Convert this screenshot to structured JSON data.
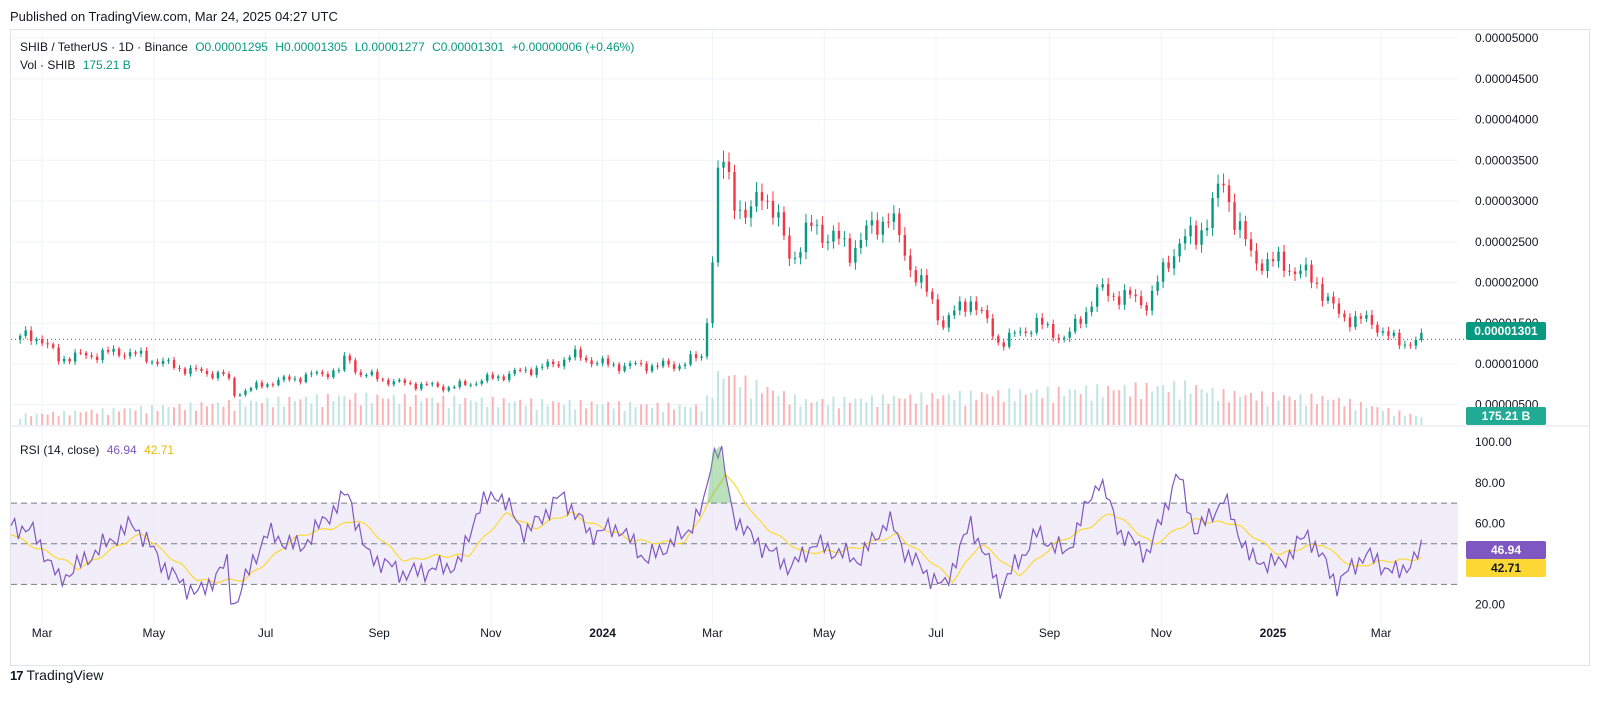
{
  "header": {
    "published": "Published on TradingView.com, Mar 24, 2025 04:27 UTC"
  },
  "legend": {
    "symbol": "SHIB / TetherUS · 1D · Binance",
    "open": "O0.00001295",
    "high": "H0.00001305",
    "low": "L0.00001277",
    "close": "C0.00001301",
    "change": "+0.00000006 (+0.46%)",
    "vol_label": "Vol · SHIB",
    "vol_value": "175.21 B",
    "rsi_label": "RSI (14, close)",
    "rsi_value": "46.94",
    "rsi_ma_value": "42.71"
  },
  "badges": {
    "price": "0.00001301",
    "volume": "175.21 B",
    "rsi": "46.94",
    "rsi_ma": "42.71"
  },
  "footer": {
    "brand": "TradingView",
    "logo_mark": "17"
  },
  "colors": {
    "up": "#089981",
    "down": "#f23645",
    "rsi": "#7e57c2",
    "rsi_ma": "#fdd835",
    "band": "#ede7f6"
  },
  "chart_data": [
    {
      "type": "candlestick",
      "title": "SHIB / TetherUS · 1D · Binance",
      "y_ticks": [
        "0.00005000",
        "0.00004500",
        "0.00004000",
        "0.00003500",
        "0.00003000",
        "0.00002500",
        "0.00002000",
        "0.00001500",
        "0.00001000",
        "0.00000500"
      ],
      "ylim": [
        2.5e-06,
        5.1e-05
      ],
      "x_ticks": [
        {
          "label": "Mar",
          "date": "2023-03-01"
        },
        {
          "label": "May",
          "date": "2023-05-01"
        },
        {
          "label": "Jul",
          "date": "2023-07-01"
        },
        {
          "label": "Sep",
          "date": "2023-09-01"
        },
        {
          "label": "Nov",
          "date": "2023-11-01"
        },
        {
          "label": "2024",
          "date": "2024-01-01"
        },
        {
          "label": "Mar",
          "date": "2024-03-01"
        },
        {
          "label": "May",
          "date": "2024-05-01"
        },
        {
          "label": "Jul",
          "date": "2024-07-01"
        },
        {
          "label": "Sep",
          "date": "2024-09-01"
        },
        {
          "label": "Nov",
          "date": "2024-11-01"
        },
        {
          "label": "2025",
          "date": "2025-01-01"
        },
        {
          "label": "Mar",
          "date": "2025-03-01"
        }
      ],
      "x_range": [
        "2023-02-12",
        "2025-04-12"
      ],
      "close_path": [
        {
          "date": "2023-02-12",
          "close": 1.3e-05
        },
        {
          "date": "2023-02-25",
          "close": 1.36e-05
        },
        {
          "date": "2023-03-10",
          "close": 1.07e-05
        },
        {
          "date": "2023-04-15",
          "close": 1.15e-05
        },
        {
          "date": "2023-05-20",
          "close": 9.2e-06
        },
        {
          "date": "2023-06-10",
          "close": 8.6e-06
        },
        {
          "date": "2023-06-13",
          "close": 6.2e-06
        },
        {
          "date": "2023-07-01",
          "close": 7.6e-06
        },
        {
          "date": "2023-08-10",
          "close": 9.2e-06
        },
        {
          "date": "2023-08-15",
          "close": 1.11e-05
        },
        {
          "date": "2023-08-20",
          "close": 8.9e-06
        },
        {
          "date": "2023-09-10",
          "close": 7.7e-06
        },
        {
          "date": "2023-10-10",
          "close": 7.1e-06
        },
        {
          "date": "2023-11-10",
          "close": 8.7e-06
        },
        {
          "date": "2023-12-05",
          "close": 9.9e-06
        },
        {
          "date": "2023-12-15",
          "close": 1.11e-05
        },
        {
          "date": "2024-01-05",
          "close": 9.8e-06
        },
        {
          "date": "2024-02-10",
          "close": 9.8e-06
        },
        {
          "date": "2024-02-25",
          "close": 1.1e-05
        },
        {
          "date": "2024-03-01",
          "close": 2.3e-05
        },
        {
          "date": "2024-03-05",
          "close": 3.55e-05
        },
        {
          "date": "2024-03-20",
          "close": 2.7e-05
        },
        {
          "date": "2024-03-28",
          "close": 3.2e-05
        },
        {
          "date": "2024-04-13",
          "close": 2.3e-05
        },
        {
          "date": "2024-04-25",
          "close": 2.7e-05
        },
        {
          "date": "2024-05-15",
          "close": 2.4e-05
        },
        {
          "date": "2024-06-05",
          "close": 2.85e-05
        },
        {
          "date": "2024-06-15",
          "close": 2.3e-05
        },
        {
          "date": "2024-07-05",
          "close": 1.5e-05
        },
        {
          "date": "2024-07-20",
          "close": 1.8e-05
        },
        {
          "date": "2024-08-05",
          "close": 1.25e-05
        },
        {
          "date": "2024-08-25",
          "close": 1.5e-05
        },
        {
          "date": "2024-09-10",
          "close": 1.3e-05
        },
        {
          "date": "2024-09-28",
          "close": 1.9e-05
        },
        {
          "date": "2024-10-25",
          "close": 1.75e-05
        },
        {
          "date": "2024-11-10",
          "close": 2.5e-05
        },
        {
          "date": "2024-11-20",
          "close": 2.55e-05
        },
        {
          "date": "2024-12-05",
          "close": 3.2e-05
        },
        {
          "date": "2024-12-20",
          "close": 2.3e-05
        },
        {
          "date": "2025-01-10",
          "close": 2.2e-05
        },
        {
          "date": "2025-01-25",
          "close": 2e-05
        },
        {
          "date": "2025-02-05",
          "close": 1.6e-05
        },
        {
          "date": "2025-02-25",
          "close": 1.5e-05
        },
        {
          "date": "2025-03-10",
          "close": 1.25e-05
        },
        {
          "date": "2025-03-24",
          "close": 1.301e-05
        }
      ],
      "last_close": 1.301e-05,
      "last_change": "+0.00000006 (+0.46%)"
    },
    {
      "type": "bar",
      "title": "Vol · SHIB",
      "last_value": "175.21 B",
      "relative_volume_path": [
        {
          "date": "2023-02-12",
          "vol": 0.18
        },
        {
          "date": "2023-08-15",
          "vol": 0.55
        },
        {
          "date": "2024-02-25",
          "vol": 0.35
        },
        {
          "date": "2024-03-05",
          "vol": 1.0
        },
        {
          "date": "2024-04-20",
          "vol": 0.45
        },
        {
          "date": "2024-11-15",
          "vol": 0.75
        },
        {
          "date": "2024-12-05",
          "vol": 0.6
        },
        {
          "date": "2025-02-03",
          "vol": 0.5
        },
        {
          "date": "2025-03-24",
          "vol": 0.15
        }
      ]
    },
    {
      "type": "line",
      "title": "RSI (14, close)",
      "y_ticks": [
        "100.00",
        "80.00",
        "60.00",
        "20.00"
      ],
      "ylim": [
        10,
        107
      ],
      "bands": {
        "upper": 70,
        "middle": 50,
        "lower": 30
      },
      "series": [
        {
          "name": "RSI",
          "points": [
            {
              "date": "2023-02-12",
              "v": 60
            },
            {
              "date": "2023-02-25",
              "v": 55
            },
            {
              "date": "2023-03-10",
              "v": 32
            },
            {
              "date": "2023-04-05",
              "v": 50
            },
            {
              "date": "2023-04-20",
              "v": 60
            },
            {
              "date": "2023-05-10",
              "v": 35
            },
            {
              "date": "2023-05-25",
              "v": 25
            },
            {
              "date": "2023-06-10",
              "v": 40
            },
            {
              "date": "2023-06-13",
              "v": 18
            },
            {
              "date": "2023-07-01",
              "v": 55
            },
            {
              "date": "2023-07-20",
              "v": 48
            },
            {
              "date": "2023-08-15",
              "v": 75
            },
            {
              "date": "2023-08-25",
              "v": 45
            },
            {
              "date": "2023-09-15",
              "v": 35
            },
            {
              "date": "2023-10-15",
              "v": 40
            },
            {
              "date": "2023-10-25",
              "v": 68
            },
            {
              "date": "2023-11-05",
              "v": 75
            },
            {
              "date": "2023-11-20",
              "v": 55
            },
            {
              "date": "2023-12-10",
              "v": 74
            },
            {
              "date": "2023-12-25",
              "v": 55
            },
            {
              "date": "2024-01-10",
              "v": 58
            },
            {
              "date": "2024-01-25",
              "v": 42
            },
            {
              "date": "2024-02-15",
              "v": 55
            },
            {
              "date": "2024-02-25",
              "v": 68
            },
            {
              "date": "2024-03-01",
              "v": 95
            },
            {
              "date": "2024-03-05",
              "v": 98
            },
            {
              "date": "2024-03-12",
              "v": 65
            },
            {
              "date": "2024-03-20",
              "v": 55
            },
            {
              "date": "2024-04-13",
              "v": 38
            },
            {
              "date": "2024-04-25",
              "v": 50
            },
            {
              "date": "2024-05-20",
              "v": 42
            },
            {
              "date": "2024-06-05",
              "v": 62
            },
            {
              "date": "2024-06-15",
              "v": 45
            },
            {
              "date": "2024-07-05",
              "v": 28
            },
            {
              "date": "2024-07-20",
              "v": 60
            },
            {
              "date": "2024-08-05",
              "v": 28
            },
            {
              "date": "2024-08-25",
              "v": 55
            },
            {
              "date": "2024-09-10",
              "v": 45
            },
            {
              "date": "2024-09-28",
              "v": 82
            },
            {
              "date": "2024-10-10",
              "v": 55
            },
            {
              "date": "2024-10-25",
              "v": 45
            },
            {
              "date": "2024-11-10",
              "v": 85
            },
            {
              "date": "2024-11-20",
              "v": 55
            },
            {
              "date": "2024-12-05",
              "v": 72
            },
            {
              "date": "2024-12-20",
              "v": 42
            },
            {
              "date": "2025-01-05",
              "v": 40
            },
            {
              "date": "2025-01-20",
              "v": 55
            },
            {
              "date": "2025-02-05",
              "v": 30
            },
            {
              "date": "2025-02-20",
              "v": 45
            },
            {
              "date": "2025-03-10",
              "v": 35
            },
            {
              "date": "2025-03-24",
              "v": 46.94
            }
          ]
        },
        {
          "name": "RSI-based MA",
          "points": [
            {
              "date": "2023-02-12",
              "v": 55
            },
            {
              "date": "2023-03-20",
              "v": 38
            },
            {
              "date": "2023-04-25",
              "v": 55
            },
            {
              "date": "2023-05-25",
              "v": 32
            },
            {
              "date": "2023-06-20",
              "v": 32
            },
            {
              "date": "2023-07-15",
              "v": 52
            },
            {
              "date": "2023-08-20",
              "v": 62
            },
            {
              "date": "2023-09-15",
              "v": 42
            },
            {
              "date": "2023-10-20",
              "v": 45
            },
            {
              "date": "2023-11-10",
              "v": 65
            },
            {
              "date": "2023-11-25",
              "v": 58
            },
            {
              "date": "2023-12-15",
              "v": 65
            },
            {
              "date": "2024-01-15",
              "v": 52
            },
            {
              "date": "2024-02-15",
              "v": 50
            },
            {
              "date": "2024-03-08",
              "v": 85
            },
            {
              "date": "2024-03-25",
              "v": 62
            },
            {
              "date": "2024-04-20",
              "v": 45
            },
            {
              "date": "2024-05-20",
              "v": 48
            },
            {
              "date": "2024-06-10",
              "v": 55
            },
            {
              "date": "2024-07-10",
              "v": 32
            },
            {
              "date": "2024-07-25",
              "v": 50
            },
            {
              "date": "2024-08-15",
              "v": 35
            },
            {
              "date": "2024-09-05",
              "v": 50
            },
            {
              "date": "2024-10-05",
              "v": 65
            },
            {
              "date": "2024-10-28",
              "v": 50
            },
            {
              "date": "2024-11-20",
              "v": 62
            },
            {
              "date": "2024-12-10",
              "v": 60
            },
            {
              "date": "2025-01-05",
              "v": 45
            },
            {
              "date": "2025-01-28",
              "v": 50
            },
            {
              "date": "2025-02-15",
              "v": 38
            },
            {
              "date": "2025-03-05",
              "v": 42
            },
            {
              "date": "2025-03-24",
              "v": 42.71
            }
          ]
        }
      ],
      "last_rsi": 46.94,
      "last_ma": 42.71
    }
  ]
}
